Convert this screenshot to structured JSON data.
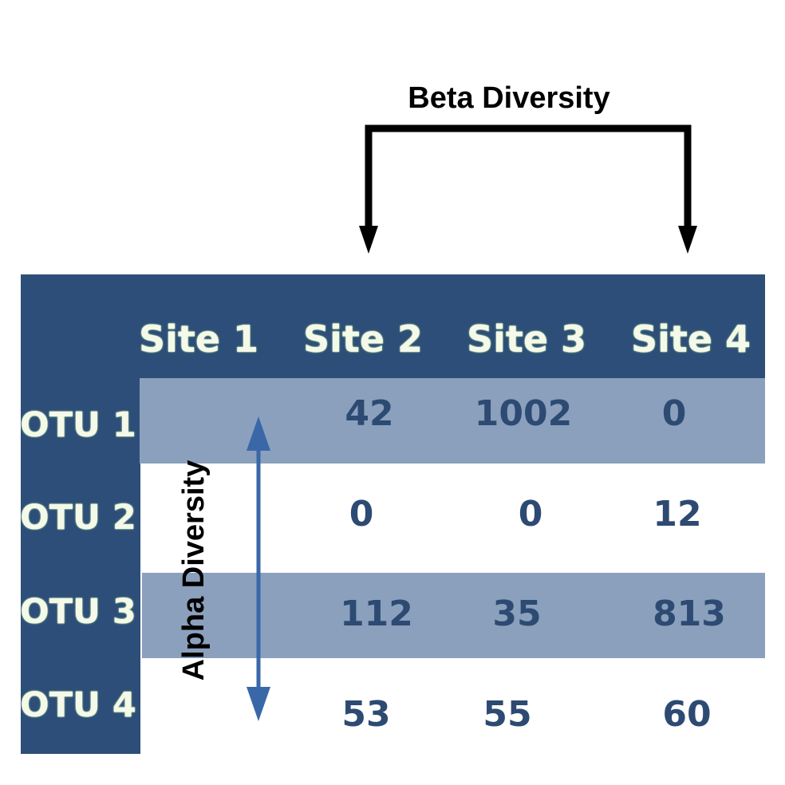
{
  "beta_label": "Beta Diversity",
  "alpha_label": "Alpha Diversity",
  "table": {
    "columns": [
      "Site 1",
      "Site 2",
      "Site 3",
      "Site 4"
    ],
    "rows": [
      {
        "label": "OTU 1",
        "cells": [
          "",
          "42",
          "1002",
          "0"
        ]
      },
      {
        "label": "OTU 2",
        "cells": [
          "",
          "0",
          "0",
          "12"
        ]
      },
      {
        "label": "OTU 3",
        "cells": [
          "",
          "112",
          "35",
          "813"
        ]
      },
      {
        "label": "OTU 4",
        "cells": [
          "",
          "53",
          "55",
          "60"
        ]
      }
    ]
  },
  "colors": {
    "header_bg": "#2d4e78",
    "band_bg": "#8aa0bd",
    "value_text": "#2d4a72",
    "header_text": "#f4f9e9",
    "arrow_alpha": "#3a67a8",
    "arrow_beta": "#000000"
  }
}
